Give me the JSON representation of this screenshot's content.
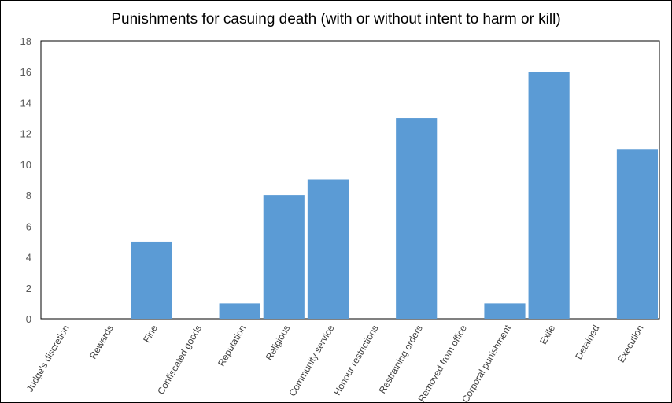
{
  "chart_data": {
    "type": "bar",
    "title": "Punishments for casuing death (with or without intent to harm or kill)",
    "xlabel": "",
    "ylabel": "",
    "ylim": [
      0,
      18
    ],
    "yticks": [
      0,
      2,
      4,
      6,
      8,
      10,
      12,
      14,
      16,
      18
    ],
    "grid": false,
    "legend": "none",
    "bar_color": "#5b9bd5",
    "categories": [
      "Judge's discretion",
      "Rewards",
      "Fine",
      "Confiscated goods",
      "Reputation",
      "Religious",
      "Community service",
      "Honour restrictions",
      "Restraining orders",
      "Removed from office",
      "Corporal punishment",
      "Exile",
      "Detained",
      "Execution"
    ],
    "values": [
      0,
      0,
      5,
      0,
      1,
      8,
      9,
      0,
      13,
      0,
      1,
      16,
      0,
      11
    ]
  }
}
